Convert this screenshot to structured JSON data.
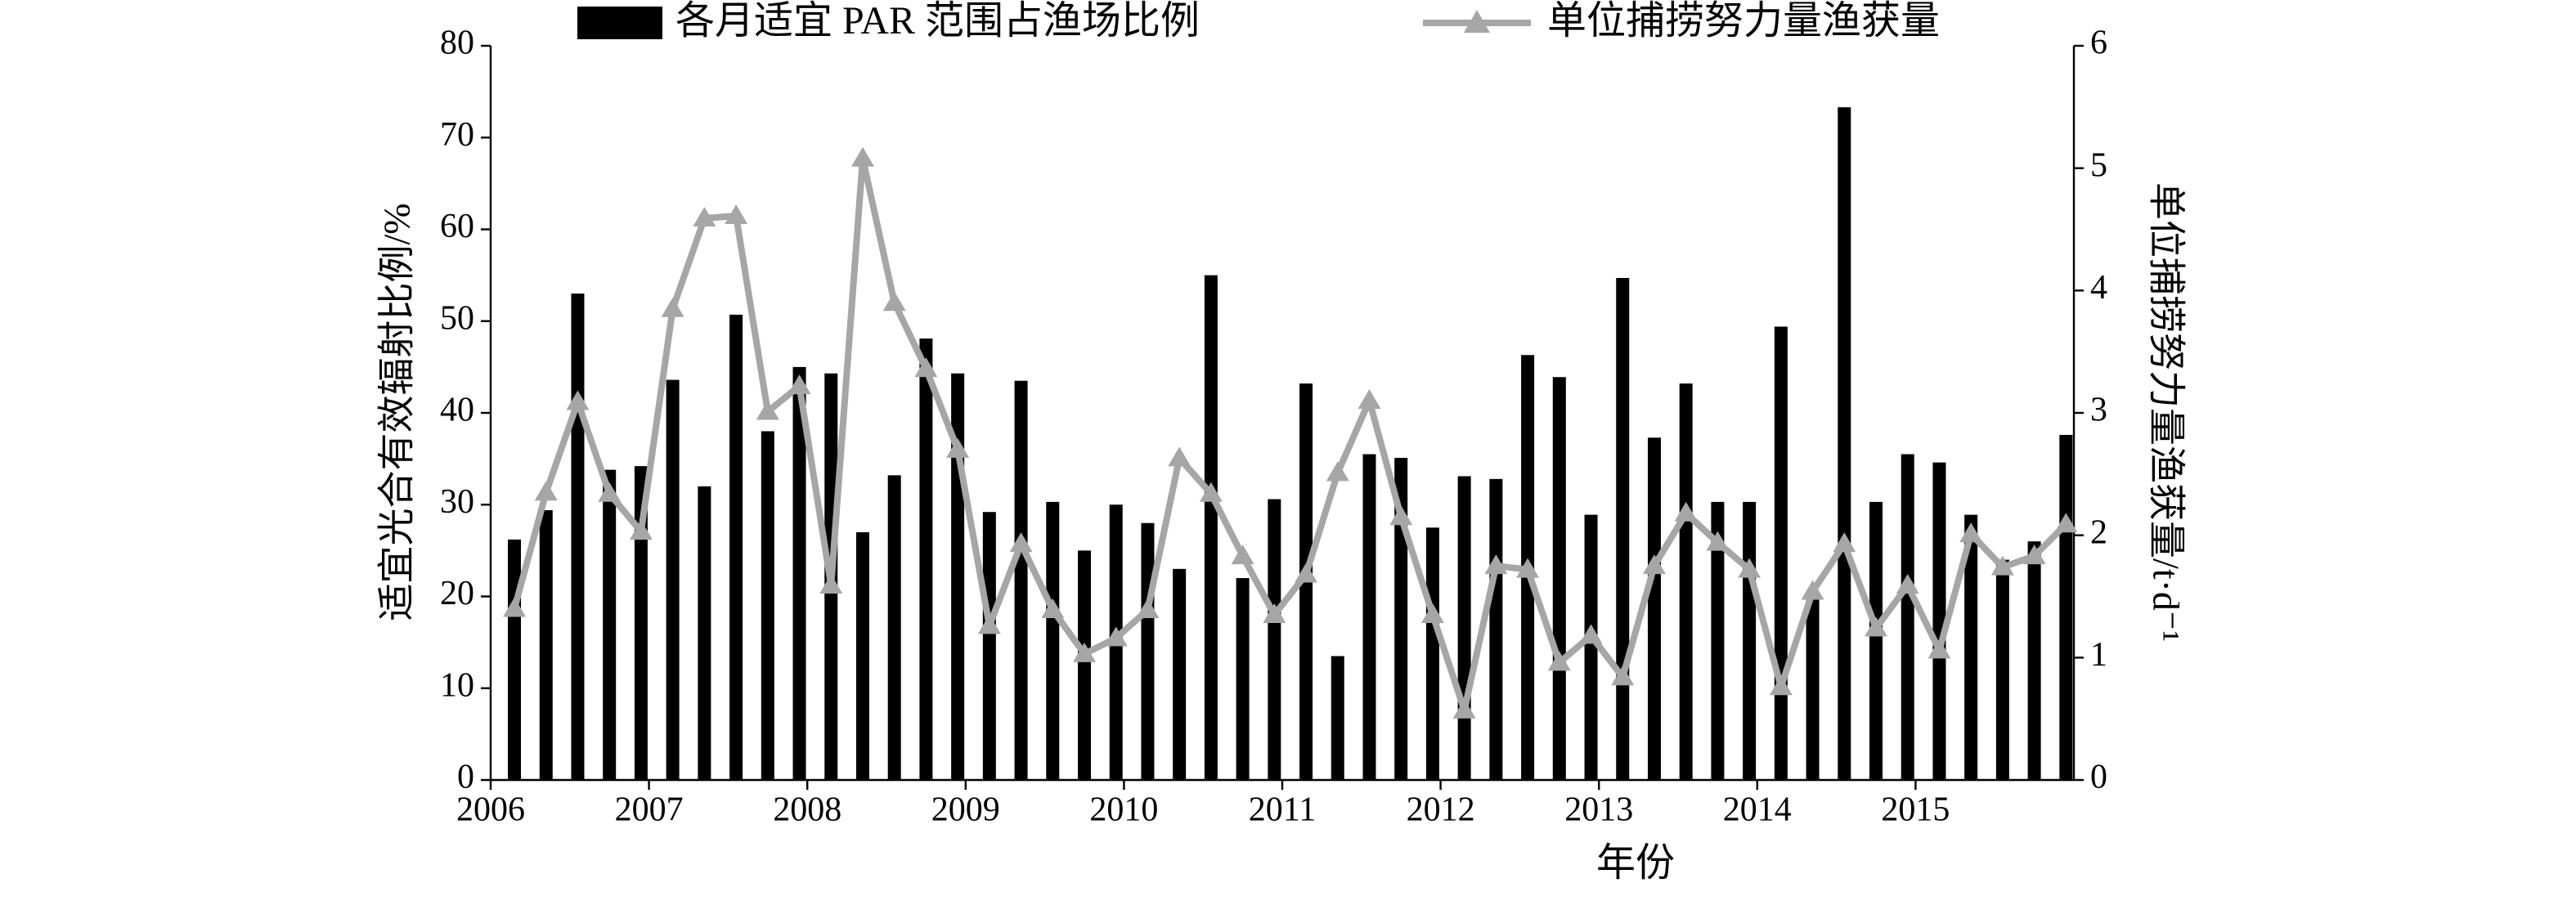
{
  "chart_data": {
    "type": "bar",
    "xlabel": "年份",
    "ylabel": "适宜光合有效辐射比例/%",
    "y2label": "单位捕捞努力量渔获量/t·d⁻¹",
    "xlim": [
      2006,
      2016
    ],
    "xticks": [
      2006,
      2007,
      2008,
      2009,
      2010,
      2011,
      2012,
      2013,
      2014,
      2015
    ],
    "ylim": [
      0,
      80
    ],
    "yticks": [
      0,
      10,
      20,
      30,
      40,
      50,
      60,
      70,
      80
    ],
    "y2lim": [
      0,
      6
    ],
    "y2ticks": [
      0,
      1,
      2,
      3,
      4,
      5,
      6
    ],
    "x": [
      2006.15,
      2006.35,
      2006.55,
      2006.75,
      2006.95,
      2007.15,
      2007.35,
      2007.55,
      2007.75,
      2007.95,
      2008.15,
      2008.35,
      2008.55,
      2008.75,
      2008.95,
      2009.15,
      2009.35,
      2009.55,
      2009.75,
      2009.95,
      2010.15,
      2010.35,
      2010.55,
      2010.75,
      2010.95,
      2011.15,
      2011.35,
      2011.55,
      2011.75,
      2011.95,
      2012.15,
      2012.35,
      2012.55,
      2012.75,
      2012.95,
      2013.15,
      2013.35,
      2013.55,
      2013.75,
      2013.95,
      2014.15,
      2014.35,
      2014.55,
      2014.75,
      2014.95,
      2015.15,
      2015.35,
      2015.55,
      2015.75,
      2015.95
    ],
    "series": [
      {
        "name": "各月适宜 PAR 范围占渔场比例",
        "type": "bar",
        "color": "#000000",
        "values": [
          26.2,
          29.4,
          53,
          33.8,
          34.2,
          43.6,
          32,
          50.7,
          38,
          45,
          44.3,
          27,
          33.2,
          48.1,
          44.3,
          29.2,
          43.5,
          30.3,
          25,
          30,
          28,
          23,
          55,
          22,
          30.6,
          43.2,
          13.5,
          35.5,
          35.1,
          27.5,
          33.1,
          32.8,
          46.3,
          43.9,
          28.9,
          54.7,
          37.3,
          43.2,
          30.3,
          30.3,
          49.4,
          20,
          73.3,
          30.3,
          35.5,
          34.6,
          28.9,
          24,
          26,
          37.6
        ]
      },
      {
        "name": "单位捕捞努力量渔获量",
        "type": "line",
        "axis": "y2",
        "color": "#a6a6a6",
        "values": [
          1.4,
          2.35,
          3.09,
          2.34,
          2.03,
          3.85,
          4.59,
          4.61,
          3.01,
          3.22,
          1.59,
          5.08,
          3.9,
          3.36,
          2.7,
          1.26,
          1.93,
          1.39,
          1.03,
          1.16,
          1.39,
          2.63,
          2.34,
          1.83,
          1.35,
          1.68,
          2.51,
          3.1,
          2.15,
          1.35,
          0.57,
          1.75,
          1.72,
          0.96,
          1.18,
          0.84,
          1.75,
          2.18,
          1.94,
          1.72,
          0.76,
          1.54,
          1.93,
          1.24,
          1.59,
          1.06,
          2.01,
          1.74,
          1.83,
          2.09
        ]
      }
    ]
  }
}
